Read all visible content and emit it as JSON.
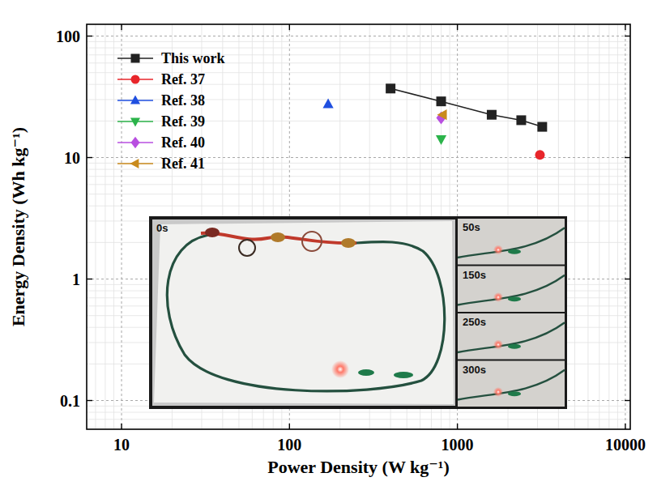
{
  "chart_data": {
    "type": "line",
    "x_label": "Power Density (W kg⁻¹)",
    "y_label": "Energy Density (Wh kg⁻¹)",
    "log": true,
    "grid": true,
    "legend": "upper left",
    "xlim": [
      6.2,
      10700
    ],
    "ylim": [
      0.058,
      125
    ],
    "xticks": [
      10,
      100,
      1000,
      10000
    ],
    "yticks": [
      0.1,
      1,
      10,
      100
    ],
    "series": [
      {
        "name": "This work",
        "type": "line",
        "color": "#222222",
        "marker": "square",
        "line_style": "solid",
        "x": [
          400,
          800,
          1600,
          2400,
          3200
        ],
        "values": [
          37,
          29,
          22.5,
          20.3,
          17.9
        ]
      },
      {
        "name": "Ref. 37",
        "type": "scatter",
        "color": "#e8262b",
        "marker": "circle",
        "x": [
          3100
        ],
        "values": [
          10.5
        ]
      },
      {
        "name": "Ref. 38",
        "type": "scatter",
        "color": "#1f4fe0",
        "marker": "triangle-up",
        "x": [
          170
        ],
        "values": [
          27.5
        ]
      },
      {
        "name": "Ref. 39",
        "type": "scatter",
        "color": "#2bb34a",
        "marker": "triangle-down",
        "x": [
          800
        ],
        "values": [
          14.2
        ]
      },
      {
        "name": "Ref. 40",
        "type": "scatter",
        "color": "#b84fe0",
        "marker": "diamond",
        "x": [
          800
        ],
        "values": [
          21.2
        ]
      },
      {
        "name": "Ref. 41",
        "type": "scatter",
        "color": "#c98a1c",
        "marker": "triangle-left",
        "x": [
          820
        ],
        "values": [
          22.5
        ]
      }
    ],
    "annotations": [
      "0s",
      "50s",
      "150s",
      "250s",
      "300s"
    ]
  }
}
